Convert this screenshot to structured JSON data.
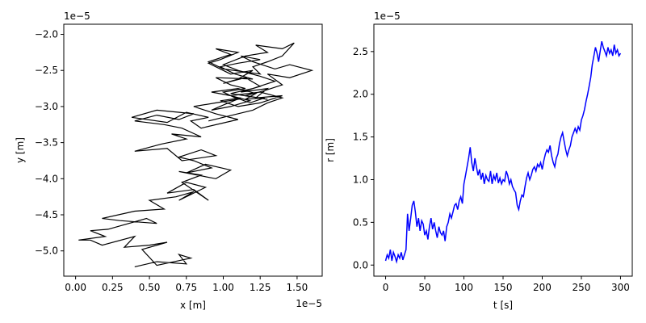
{
  "chart_data": [
    {
      "type": "line",
      "title": "",
      "xlabel": "x [m]",
      "ylabel": "y [m]",
      "x_offset_label": "1e−5",
      "y_offset_label": "1e−5",
      "xlim": [
        -0.08,
        1.67
      ],
      "ylim": [
        -5.35,
        -1.86
      ],
      "x_ticks": [
        0.0,
        0.25,
        0.5,
        0.75,
        1.0,
        1.25,
        1.5
      ],
      "x_tick_labels": [
        "0.00",
        "0.25",
        "0.50",
        "0.75",
        "1.00",
        "1.25",
        "1.50"
      ],
      "y_ticks": [
        -5.0,
        -4.5,
        -4.0,
        -3.5,
        -3.0,
        -2.5,
        -2.0
      ],
      "y_tick_labels": [
        "−5.0",
        "−4.5",
        "−4.0",
        "−3.5",
        "−3.0",
        "−2.5",
        "−2.0"
      ],
      "grid": false,
      "color": "#000000",
      "series": [
        {
          "x": [
            0.4,
            0.55,
            0.75,
            0.7,
            0.78,
            0.55,
            0.45,
            0.62,
            0.5,
            0.33,
            0.4,
            0.18,
            0.1,
            0.02,
            0.2,
            0.1,
            0.22,
            0.48,
            0.55,
            0.3,
            0.18,
            0.4,
            0.6,
            0.5,
            0.68,
            0.8,
            0.7,
            0.88,
            0.75,
            0.62,
            0.8,
            0.9,
            0.72,
            0.85,
            0.7,
            0.95,
            1.05,
            0.88,
            0.75,
            0.92,
            0.8,
            0.7,
            0.85,
            0.95,
            0.72,
            0.62,
            0.4,
            0.58,
            0.75,
            0.65,
            0.85,
            0.72,
            0.6,
            0.4,
            0.55,
            0.7,
            0.8,
            0.55,
            0.38,
            0.62,
            0.75,
            0.9,
            0.78,
            0.85,
            1.1,
            0.95,
            0.8,
            0.95,
            1.1,
            1.0,
            1.15,
            1.05,
            0.95,
            1.2,
            1.08,
            0.98,
            1.1,
            1.25,
            1.12,
            1.2,
            1.35,
            1.45,
            1.6,
            1.45,
            1.3,
            1.4,
            1.28,
            1.15,
            1.3,
            1.05,
            1.2,
            1.35,
            1.25,
            1.1,
            1.0,
            1.15,
            1.3,
            1.22,
            1.4,
            1.48,
            1.4,
            1.3,
            1.2,
            1.25,
            1.0,
            0.9,
            1.05,
            0.95,
            1.1,
            0.98,
            0.9,
            1.05,
            1.2,
            1.1,
            1.0,
            1.15,
            1.25,
            1.12,
            1.3,
            1.22,
            1.4,
            1.25,
            1.1,
            0.98,
            1.12,
            1.0,
            0.92,
            1.05,
            1.18,
            1.05,
            0.92,
            1.1,
            1.22,
            1.15,
            1.28,
            1.18,
            1.05,
            1.25,
            1.4,
            1.3,
            1.2,
            1.0,
            0.9
          ],
          "y": [
            -5.22,
            -5.15,
            -5.18,
            -5.05,
            -5.1,
            -5.2,
            -4.98,
            -4.88,
            -4.92,
            -4.95,
            -4.8,
            -4.92,
            -4.85,
            -4.85,
            -4.8,
            -4.72,
            -4.7,
            -4.55,
            -4.62,
            -4.58,
            -4.55,
            -4.45,
            -4.42,
            -4.3,
            -4.25,
            -4.18,
            -4.3,
            -4.12,
            -4.05,
            -4.2,
            -4.15,
            -4.3,
            -4.05,
            -3.95,
            -3.9,
            -4.0,
            -3.88,
            -3.8,
            -3.92,
            -3.85,
            -3.75,
            -3.7,
            -3.6,
            -3.68,
            -3.75,
            -3.58,
            -3.62,
            -3.52,
            -3.45,
            -3.38,
            -3.42,
            -3.3,
            -3.25,
            -3.2,
            -3.12,
            -3.18,
            -3.1,
            -3.05,
            -3.15,
            -3.22,
            -3.08,
            -3.15,
            -3.2,
            -3.3,
            -3.18,
            -3.1,
            -3.0,
            -2.95,
            -2.9,
            -2.8,
            -2.75,
            -2.7,
            -2.6,
            -2.62,
            -2.55,
            -2.45,
            -2.4,
            -2.35,
            -2.3,
            -2.38,
            -2.48,
            -2.42,
            -2.5,
            -2.6,
            -2.55,
            -2.7,
            -2.78,
            -2.85,
            -2.9,
            -2.82,
            -2.75,
            -2.65,
            -2.58,
            -2.5,
            -2.42,
            -2.3,
            -2.25,
            -2.15,
            -2.2,
            -2.12,
            -2.3,
            -2.38,
            -2.45,
            -2.55,
            -2.48,
            -2.38,
            -2.28,
            -2.2,
            -2.25,
            -2.35,
            -2.4,
            -2.55,
            -2.5,
            -2.62,
            -2.68,
            -2.6,
            -2.72,
            -2.8,
            -2.75,
            -2.88,
            -2.85,
            -2.95,
            -3.0,
            -2.92,
            -2.88,
            -2.98,
            -3.05,
            -3.0,
            -2.92,
            -2.85,
            -2.8,
            -2.75,
            -2.82,
            -2.9,
            -2.88,
            -2.95,
            -2.85,
            -2.8,
            -2.88,
            -2.95,
            -3.05,
            -3.15,
            -3.2
          ]
        }
      ]
    },
    {
      "type": "line",
      "title": "",
      "xlabel": "t [s]",
      "ylabel": "r [m]",
      "y_offset_label": "1e−5",
      "xlim": [
        -15,
        315
      ],
      "ylim": [
        -0.13,
        2.82
      ],
      "x_ticks": [
        0,
        50,
        100,
        150,
        200,
        250,
        300
      ],
      "x_tick_labels": [
        "0",
        "50",
        "100",
        "150",
        "200",
        "250",
        "300"
      ],
      "y_ticks": [
        0.0,
        0.5,
        1.0,
        1.5,
        2.0,
        2.5
      ],
      "y_tick_labels": [
        "0.0",
        "0.5",
        "1.0",
        "1.5",
        "2.0",
        "2.5"
      ],
      "grid": false,
      "color": "#0000ff",
      "series": [
        {
          "x": [
            0,
            2,
            4,
            6,
            8,
            10,
            12,
            14,
            16,
            18,
            20,
            22,
            24,
            26,
            28,
            30,
            32,
            34,
            36,
            38,
            40,
            42,
            44,
            46,
            48,
            50,
            52,
            54,
            56,
            58,
            60,
            62,
            64,
            66,
            68,
            70,
            72,
            74,
            76,
            78,
            80,
            82,
            84,
            86,
            88,
            90,
            92,
            94,
            96,
            98,
            100,
            102,
            104,
            106,
            108,
            110,
            112,
            114,
            116,
            118,
            120,
            122,
            124,
            126,
            128,
            130,
            132,
            134,
            136,
            138,
            140,
            142,
            144,
            146,
            148,
            150,
            152,
            154,
            156,
            158,
            160,
            162,
            164,
            166,
            168,
            170,
            172,
            174,
            176,
            178,
            180,
            182,
            184,
            186,
            188,
            190,
            192,
            194,
            196,
            198,
            200,
            202,
            204,
            206,
            208,
            210,
            212,
            214,
            216,
            218,
            220,
            222,
            224,
            226,
            228,
            230,
            232,
            234,
            236,
            238,
            240,
            242,
            244,
            246,
            248,
            250,
            252,
            254,
            256,
            258,
            260,
            262,
            264,
            266,
            268,
            270,
            272,
            274,
            276,
            278,
            280,
            282,
            284,
            286,
            288,
            290,
            292,
            294,
            296,
            298,
            300
          ],
          "y": [
            0.05,
            0.12,
            0.08,
            0.18,
            0.05,
            0.15,
            0.1,
            0.04,
            0.12,
            0.08,
            0.15,
            0.06,
            0.12,
            0.18,
            0.6,
            0.4,
            0.55,
            0.7,
            0.75,
            0.62,
            0.45,
            0.55,
            0.4,
            0.52,
            0.48,
            0.35,
            0.4,
            0.3,
            0.45,
            0.55,
            0.42,
            0.5,
            0.4,
            0.32,
            0.45,
            0.38,
            0.35,
            0.4,
            0.28,
            0.45,
            0.5,
            0.6,
            0.55,
            0.62,
            0.7,
            0.72,
            0.65,
            0.75,
            0.8,
            0.72,
            0.95,
            1.05,
            1.15,
            1.25,
            1.38,
            1.2,
            1.1,
            1.25,
            1.15,
            1.05,
            1.12,
            1.0,
            1.08,
            0.95,
            1.05,
            1.0,
            0.98,
            1.1,
            0.95,
            1.05,
            1.0,
            1.08,
            0.96,
            1.02,
            0.95,
            1.0,
            0.98,
            1.1,
            1.05,
            0.95,
            1.0,
            0.92,
            0.88,
            0.85,
            0.7,
            0.65,
            0.75,
            0.82,
            0.8,
            0.92,
            1.02,
            1.08,
            1.0,
            1.05,
            1.12,
            1.15,
            1.1,
            1.18,
            1.15,
            1.2,
            1.12,
            1.22,
            1.3,
            1.35,
            1.32,
            1.4,
            1.28,
            1.2,
            1.15,
            1.25,
            1.3,
            1.42,
            1.5,
            1.55,
            1.45,
            1.35,
            1.28,
            1.35,
            1.4,
            1.5,
            1.55,
            1.6,
            1.55,
            1.62,
            1.58,
            1.7,
            1.75,
            1.82,
            1.92,
            2.0,
            2.1,
            2.2,
            2.35,
            2.45,
            2.55,
            2.48,
            2.38,
            2.5,
            2.62,
            2.55,
            2.5,
            2.45,
            2.55,
            2.48,
            2.52,
            2.45,
            2.58,
            2.48,
            2.52,
            2.45,
            2.48
          ]
        }
      ]
    }
  ]
}
